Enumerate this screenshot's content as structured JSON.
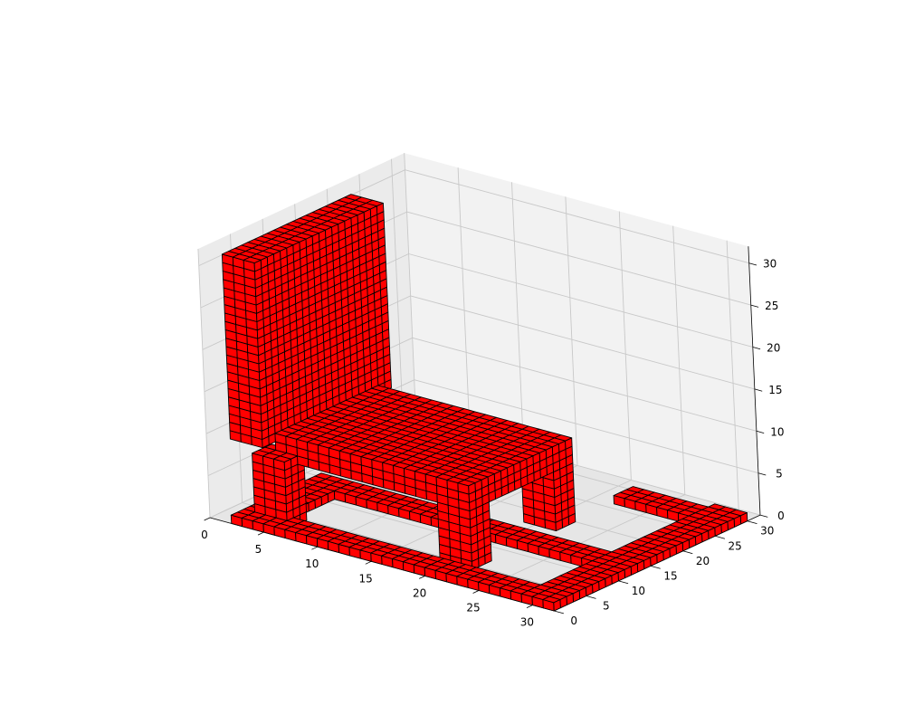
{
  "figure": {
    "background": "#ffffff",
    "pane_colors": [
      "#f2f2f2",
      "#ebebeb",
      "#e6e6e6"
    ],
    "grid_color": "#c8c8c8",
    "axis_color": "#000000"
  },
  "chart_data": {
    "type": "voxels",
    "title": "",
    "xlabel": "",
    "ylabel": "",
    "zlabel": "",
    "xlim": [
      0,
      32
    ],
    "ylim": [
      0,
      32
    ],
    "zlim": [
      0,
      32
    ],
    "x_ticks": [
      "0",
      "5",
      "10",
      "15",
      "20",
      "25",
      "30"
    ],
    "y_ticks": [
      "0",
      "5",
      "10",
      "15",
      "20",
      "25",
      "30"
    ],
    "z_ticks": [
      "0",
      "5",
      "10",
      "15",
      "20",
      "25",
      "30"
    ],
    "grid": true,
    "voxel_face_color": "#ff0000",
    "voxel_edge_color": "#000000",
    "object": "chair: seat slab at low height, tall backrest along the y-axis side, support legs down to the floor",
    "components": [
      {
        "part": "backrest",
        "x": [
          1,
          4
        ],
        "y": [
          2,
          22
        ],
        "z": [
          9,
          31
        ]
      },
      {
        "part": "seat",
        "x": [
          4,
          22
        ],
        "y": [
          4,
          20
        ],
        "z": [
          7,
          10
        ]
      },
      {
        "part": "front-left-leg",
        "x": [
          3,
          6
        ],
        "y": [
          2,
          5
        ],
        "z": [
          0,
          8
        ]
      },
      {
        "part": "rear-left-leg",
        "x": [
          2,
          5
        ],
        "y": [
          18,
          21
        ],
        "z": [
          0,
          8
        ]
      },
      {
        "part": "front-right-leg",
        "x": [
          19,
          22
        ],
        "y": [
          4,
          7
        ],
        "z": [
          0,
          8
        ]
      },
      {
        "part": "rear-right-leg",
        "x": [
          19,
          22
        ],
        "y": [
          17,
          20
        ],
        "z": [
          0,
          8
        ]
      },
      {
        "part": "base-frame-front",
        "x": [
          2,
          32
        ],
        "y": [
          0,
          3
        ],
        "z": [
          0,
          1
        ]
      },
      {
        "part": "base-frame-right",
        "x": [
          29,
          32
        ],
        "y": [
          0,
          30
        ],
        "z": [
          0,
          1
        ]
      },
      {
        "part": "base-frame-back",
        "x": [
          22,
          32
        ],
        "y": [
          26,
          29
        ],
        "z": [
          0,
          1
        ]
      },
      {
        "part": "base-frame-middle",
        "x": [
          4,
          30
        ],
        "y": [
          11,
          14
        ],
        "z": [
          0,
          1
        ]
      },
      {
        "part": "base-frame-left",
        "x": [
          2,
          5
        ],
        "y": [
          0,
          14
        ],
        "z": [
          0,
          1
        ]
      }
    ]
  }
}
